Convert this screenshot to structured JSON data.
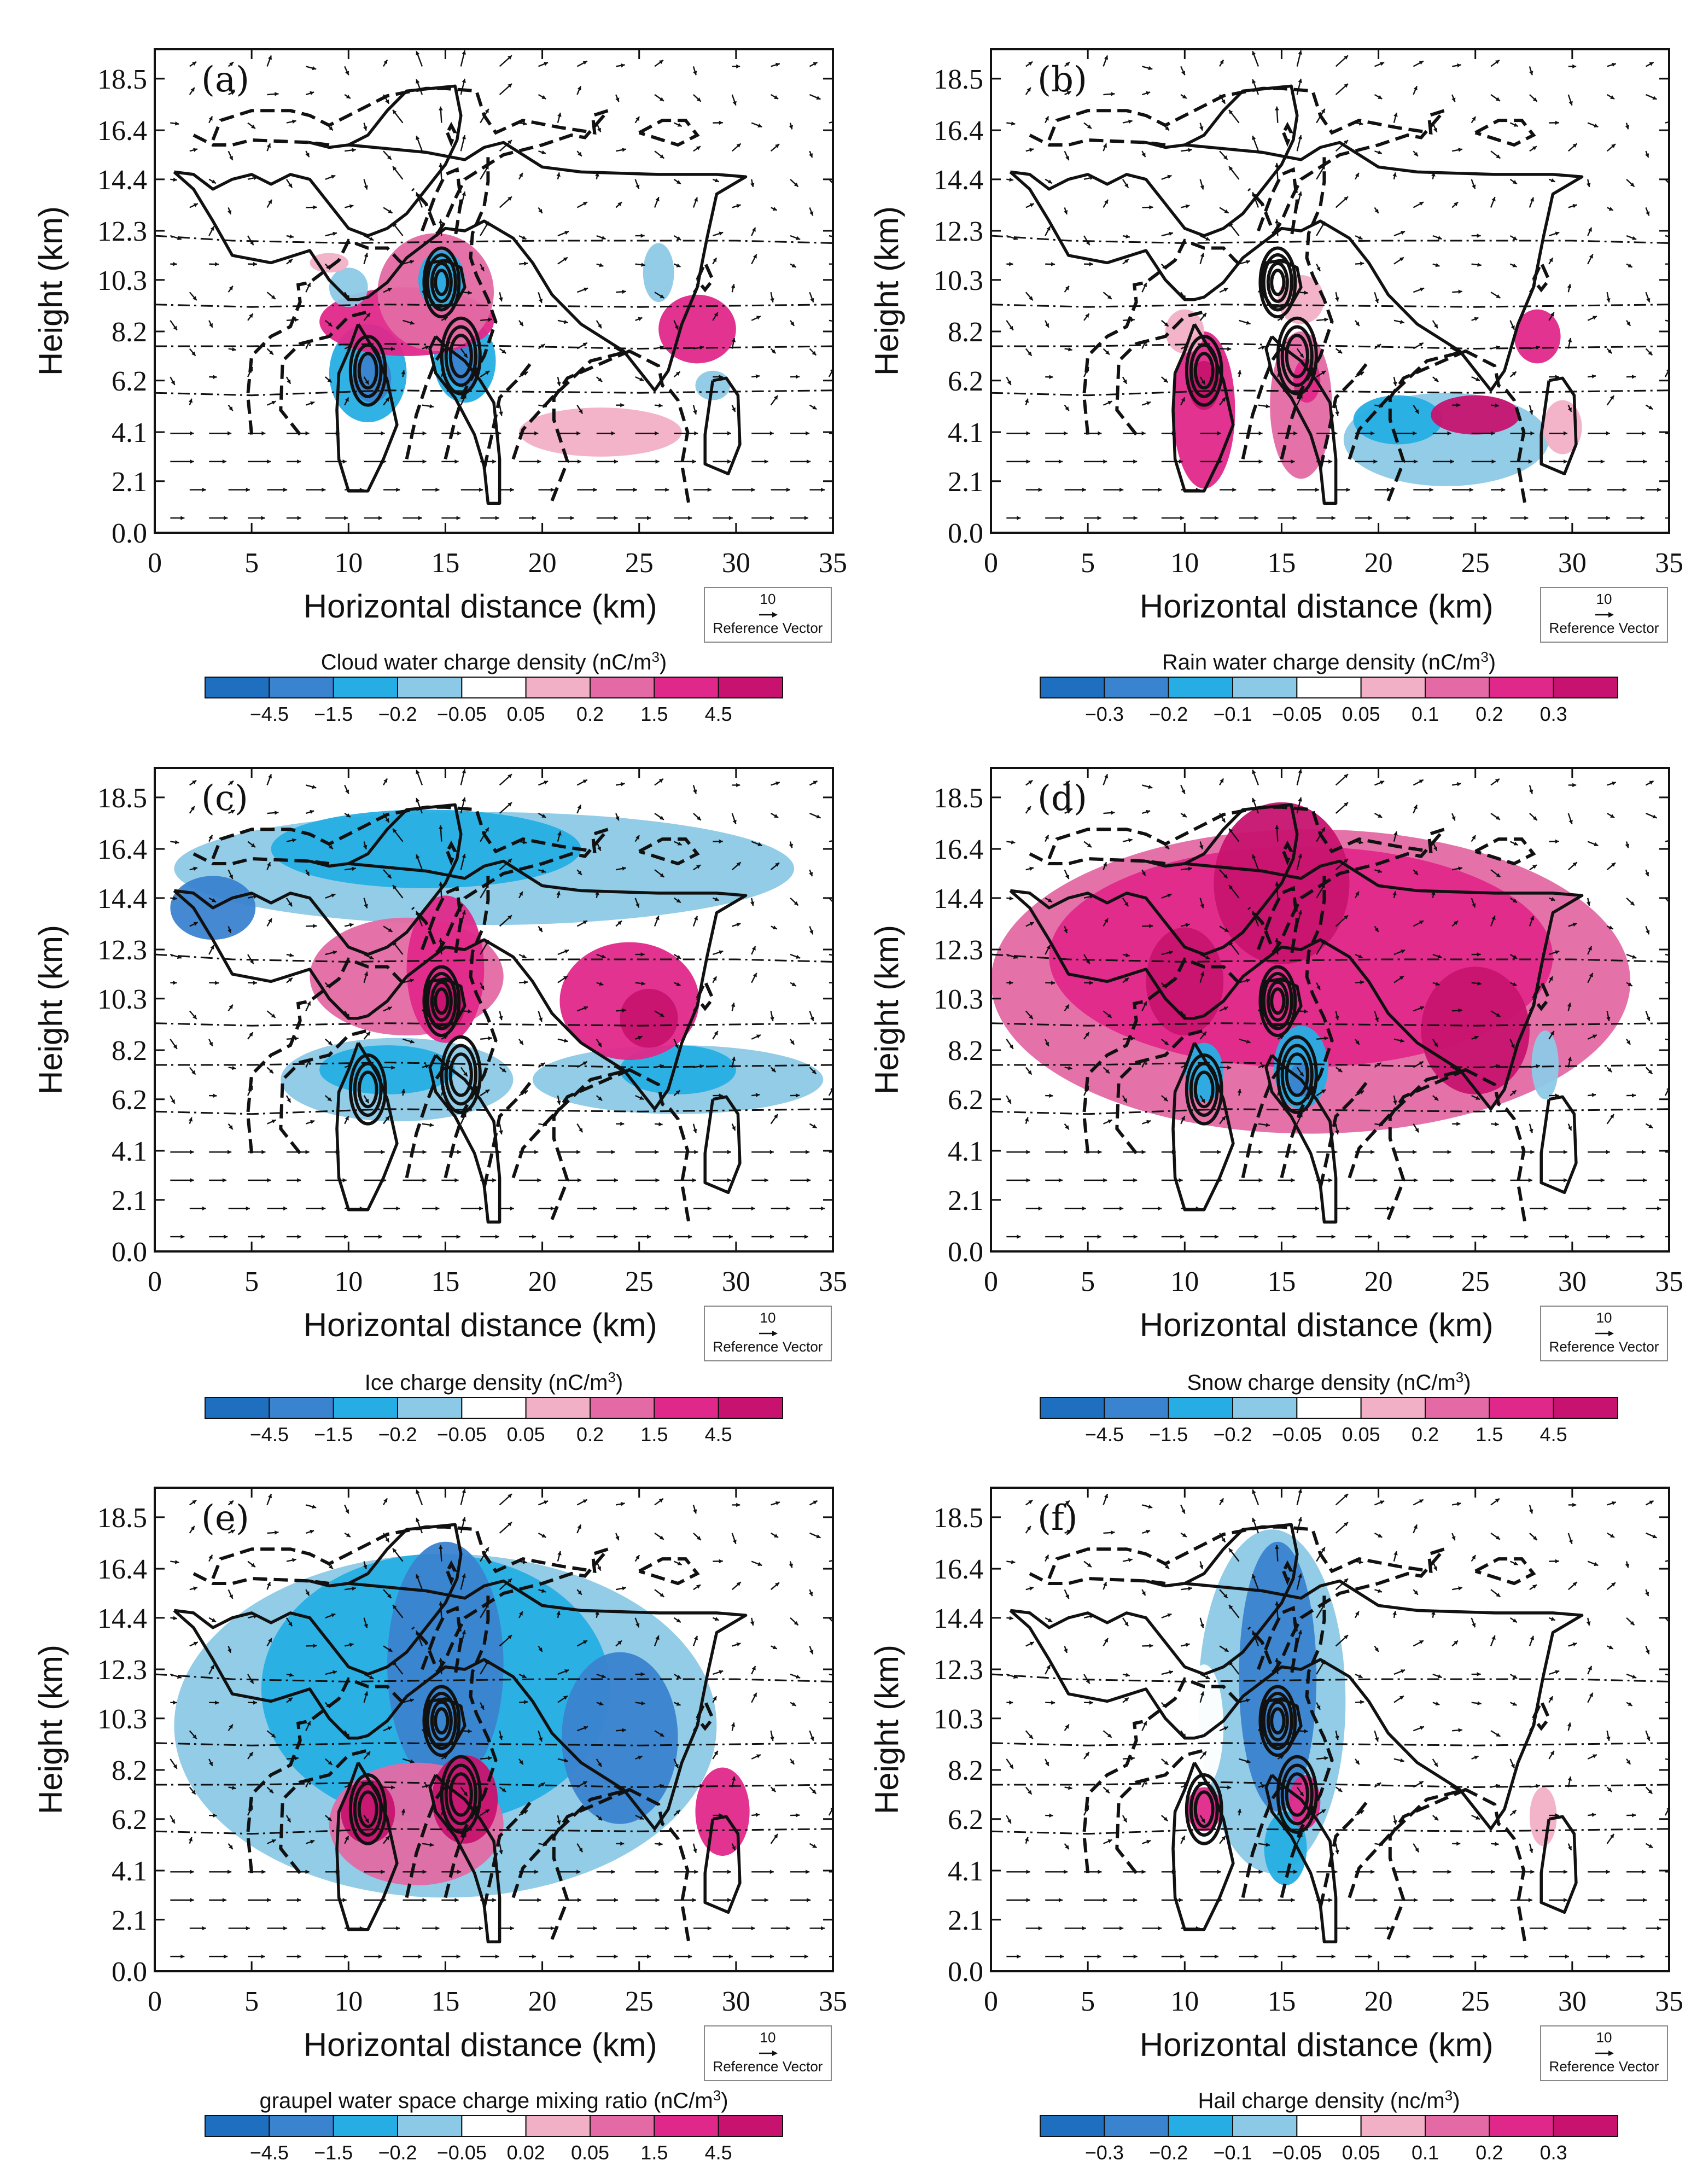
{
  "chart_data": [
    {
      "type": "contour",
      "panel_label": "(a)",
      "xlabel": "Horizontal distance (km)",
      "ylabel": "Height (km)",
      "xlim": [
        0,
        35
      ],
      "xticks": [
        "0",
        "5",
        "10",
        "15",
        "20",
        "25",
        "30",
        "35"
      ],
      "yticks": [
        "0.0",
        "2.1",
        "4.1",
        "6.2",
        "8.2",
        "10.3",
        "12.3",
        "14.4",
        "16.4",
        "18.5"
      ],
      "reference_vector": {
        "value": "10",
        "label": "Reference Vector"
      },
      "colorbar": {
        "title": "Cloud water charge density  (nC/m",
        "title_sup": "3",
        "title_end": ")",
        "levels": [
          "-4.5",
          "-1.5",
          "-0.2",
          "-0.05",
          "0.05",
          "0.2",
          "1.5",
          "4.5"
        ]
      },
      "blobs": [
        {
          "x": 11,
          "y": 6.5,
          "rx": 2.0,
          "ry": 2.0,
          "c": 2
        },
        {
          "x": 11.2,
          "y": 6.3,
          "rx": 1.0,
          "ry": 1.0,
          "c": 1
        },
        {
          "x": 16,
          "y": 7.0,
          "rx": 1.6,
          "ry": 1.7,
          "c": 2
        },
        {
          "x": 16,
          "y": 6.8,
          "rx": 0.8,
          "ry": 0.9,
          "c": 1
        },
        {
          "x": 13,
          "y": 8.6,
          "rx": 4.5,
          "ry": 1.4,
          "c": 7
        },
        {
          "x": 14.5,
          "y": 9.8,
          "rx": 3.0,
          "ry": 2.4,
          "c": 6
        },
        {
          "x": 14.8,
          "y": 10.3,
          "rx": 1.2,
          "ry": 1.2,
          "c": 2
        },
        {
          "x": 10,
          "y": 10.0,
          "rx": 1.0,
          "ry": 0.8,
          "c": 3
        },
        {
          "x": 9,
          "y": 11.0,
          "rx": 1.0,
          "ry": 0.4,
          "c": 5
        },
        {
          "x": 23,
          "y": 4.1,
          "rx": 4.2,
          "ry": 1.0,
          "c": 5
        },
        {
          "x": 26,
          "y": 10.6,
          "rx": 0.8,
          "ry": 1.2,
          "c": 3
        },
        {
          "x": 28,
          "y": 8.3,
          "rx": 2.0,
          "ry": 1.4,
          "c": 7
        },
        {
          "x": 28.8,
          "y": 6.0,
          "rx": 0.9,
          "ry": 0.6,
          "c": 3
        }
      ]
    },
    {
      "type": "contour",
      "panel_label": "(b)",
      "xlabel": "Horizontal distance (km)",
      "ylabel": "Height (km)",
      "xlim": [
        0,
        35
      ],
      "xticks": [
        "0",
        "5",
        "10",
        "15",
        "20",
        "25",
        "30",
        "35"
      ],
      "yticks": [
        "0.0",
        "2.1",
        "4.1",
        "6.2",
        "8.2",
        "10.3",
        "12.3",
        "14.4",
        "16.4",
        "18.5"
      ],
      "reference_vector": {
        "value": "10",
        "label": "Reference Vector"
      },
      "colorbar": {
        "title": "Rain water charge density  (nC/m",
        "title_sup": "3",
        "title_end": ")",
        "levels": [
          "-0.3",
          "-0.2",
          "-0.1",
          "-0.05",
          "0.05",
          "0.1",
          "0.2",
          "0.3"
        ]
      },
      "blobs": [
        {
          "x": 11,
          "y": 5.0,
          "rx": 1.6,
          "ry": 3.2,
          "c": 7
        },
        {
          "x": 11,
          "y": 6.0,
          "rx": 0.8,
          "ry": 1.0,
          "c": 8
        },
        {
          "x": 16,
          "y": 5.2,
          "rx": 1.6,
          "ry": 3.0,
          "c": 6
        },
        {
          "x": 16.3,
          "y": 6.2,
          "rx": 0.7,
          "ry": 0.9,
          "c": 7
        },
        {
          "x": 10,
          "y": 8.2,
          "rx": 1.0,
          "ry": 0.9,
          "c": 5
        },
        {
          "x": 16,
          "y": 9.5,
          "rx": 1.2,
          "ry": 1.0,
          "c": 5
        },
        {
          "x": 7,
          "y": 3.9,
          "rx": 1.5,
          "ry": 0.8,
          "c": 4
        },
        {
          "x": 23.5,
          "y": 3.8,
          "rx": 5.3,
          "ry": 1.9,
          "c": 3
        },
        {
          "x": 21,
          "y": 4.6,
          "rx": 2.3,
          "ry": 1.0,
          "c": 2
        },
        {
          "x": 25,
          "y": 4.8,
          "rx": 2.3,
          "ry": 0.8,
          "c": 8
        },
        {
          "x": 28.2,
          "y": 8.0,
          "rx": 1.2,
          "ry": 1.1,
          "c": 7
        },
        {
          "x": 29.5,
          "y": 4.3,
          "rx": 1.0,
          "ry": 1.1,
          "c": 5
        }
      ]
    },
    {
      "type": "contour",
      "panel_label": "(c)",
      "xlabel": "Horizontal distance (km)",
      "ylabel": "Height (km)",
      "xlim": [
        0,
        35
      ],
      "xticks": [
        "0",
        "5",
        "10",
        "15",
        "20",
        "25",
        "30",
        "35"
      ],
      "yticks": [
        "0.0",
        "2.1",
        "4.1",
        "6.2",
        "8.2",
        "10.3",
        "12.3",
        "14.4",
        "16.4",
        "18.5"
      ],
      "reference_vector": {
        "value": "10",
        "label": "Reference Vector"
      },
      "colorbar": {
        "title": "Ice charge density  (nC/m",
        "title_sup": "3",
        "title_end": ")",
        "levels": [
          "-4.5",
          "-1.5",
          "-0.2",
          "-0.05",
          "0.05",
          "0.2",
          "1.5",
          "4.5"
        ]
      },
      "blobs": [
        {
          "x": 17,
          "y": 15.6,
          "rx": 16,
          "ry": 2.3,
          "c": 3
        },
        {
          "x": 14,
          "y": 16.4,
          "rx": 8,
          "ry": 1.6,
          "c": 2
        },
        {
          "x": 3,
          "y": 14.0,
          "rx": 2.2,
          "ry": 1.3,
          "c": 1
        },
        {
          "x": 27,
          "y": 7.0,
          "rx": 7.5,
          "ry": 1.4,
          "c": 3
        },
        {
          "x": 27,
          "y": 7.4,
          "rx": 3.0,
          "ry": 1.0,
          "c": 2
        },
        {
          "x": 12.5,
          "y": 7.0,
          "rx": 6.0,
          "ry": 1.7,
          "c": 3
        },
        {
          "x": 12,
          "y": 7.4,
          "rx": 3.5,
          "ry": 1.0,
          "c": 2
        },
        {
          "x": 13,
          "y": 11.2,
          "rx": 5.0,
          "ry": 2.4,
          "c": 6
        },
        {
          "x": 15,
          "y": 11.5,
          "rx": 2.0,
          "ry": 3.0,
          "c": 7
        },
        {
          "x": 15,
          "y": 10.0,
          "rx": 1.0,
          "ry": 1.0,
          "c": 8
        },
        {
          "x": 24.5,
          "y": 10.2,
          "rx": 3.6,
          "ry": 2.4,
          "c": 7
        },
        {
          "x": 25.5,
          "y": 9.5,
          "rx": 1.5,
          "ry": 1.2,
          "c": 8
        }
      ]
    },
    {
      "type": "contour",
      "panel_label": "(d)",
      "xlabel": "Horizontal distance (km)",
      "ylabel": "Height (km)",
      "xlim": [
        0,
        35
      ],
      "xticks": [
        "0",
        "5",
        "10",
        "15",
        "20",
        "25",
        "30",
        "35"
      ],
      "yticks": [
        "0.0",
        "2.1",
        "4.1",
        "6.2",
        "8.2",
        "10.3",
        "12.3",
        "14.4",
        "16.4",
        "18.5"
      ],
      "reference_vector": {
        "value": "10",
        "label": "Reference Vector"
      },
      "colorbar": {
        "title": "Snow charge density  (nC/m",
        "title_sup": "3",
        "title_end": ")",
        "levels": [
          "-4.5",
          "-1.5",
          "-0.2",
          "-0.05",
          "0.05",
          "0.2",
          "1.5",
          "4.5"
        ]
      },
      "blobs": [
        {
          "x": 16.5,
          "y": 11.0,
          "rx": 16.5,
          "ry": 6.2,
          "c": 6
        },
        {
          "x": 16,
          "y": 12.0,
          "rx": 13,
          "ry": 4.5,
          "c": 7
        },
        {
          "x": 15,
          "y": 15.0,
          "rx": 3.5,
          "ry": 3.3,
          "c": 8
        },
        {
          "x": 10,
          "y": 11.0,
          "rx": 2.0,
          "ry": 2.2,
          "c": 8
        },
        {
          "x": 25,
          "y": 9.0,
          "rx": 2.8,
          "ry": 2.6,
          "c": 8
        },
        {
          "x": 11,
          "y": 7.3,
          "rx": 1.0,
          "ry": 1.2,
          "c": 2
        },
        {
          "x": 16,
          "y": 7.5,
          "rx": 1.4,
          "ry": 1.7,
          "c": 2
        },
        {
          "x": 16,
          "y": 7.0,
          "rx": 0.6,
          "ry": 0.7,
          "c": 1
        },
        {
          "x": 28.6,
          "y": 7.6,
          "rx": 0.7,
          "ry": 1.4,
          "c": 3
        }
      ]
    },
    {
      "type": "contour",
      "panel_label": "(e)",
      "xlabel": "Horizontal distance (km)",
      "ylabel": "Height (km)",
      "xlim": [
        0,
        35
      ],
      "xticks": [
        "0",
        "5",
        "10",
        "15",
        "20",
        "25",
        "30",
        "35"
      ],
      "yticks": [
        "0.0",
        "2.1",
        "4.1",
        "6.2",
        "8.2",
        "10.3",
        "12.3",
        "14.4",
        "16.4",
        "18.5"
      ],
      "reference_vector": {
        "value": "10",
        "label": "Reference Vector"
      },
      "colorbar": {
        "title": "graupel water space charge mixing ratio  (nC/m",
        "title_sup": "3",
        "title_end": ")",
        "levels": [
          "-4.5",
          "-1.5",
          "-0.2",
          "-0.05",
          "0.02",
          "0.05",
          "1.5",
          "4.5"
        ]
      },
      "blobs": [
        {
          "x": 15,
          "y": 10.0,
          "rx": 14,
          "ry": 7.0,
          "c": 3
        },
        {
          "x": 14.5,
          "y": 11.5,
          "rx": 9,
          "ry": 5.5,
          "c": 2
        },
        {
          "x": 15,
          "y": 12.5,
          "rx": 3.0,
          "ry": 5.0,
          "c": 1
        },
        {
          "x": 24,
          "y": 9.5,
          "rx": 3.0,
          "ry": 3.5,
          "c": 1
        },
        {
          "x": 13.5,
          "y": 6.0,
          "rx": 4.5,
          "ry": 2.5,
          "c": 6
        },
        {
          "x": 11,
          "y": 6.5,
          "rx": 1.4,
          "ry": 1.3,
          "c": 8
        },
        {
          "x": 16,
          "y": 7.0,
          "rx": 1.7,
          "ry": 1.8,
          "c": 8
        },
        {
          "x": 29.3,
          "y": 6.5,
          "rx": 1.4,
          "ry": 1.8,
          "c": 7
        }
      ]
    },
    {
      "type": "contour",
      "panel_label": "(f)",
      "xlabel": "Horizontal distance (km)",
      "ylabel": "Height (km)",
      "xlim": [
        0,
        35
      ],
      "xticks": [
        "0",
        "5",
        "10",
        "15",
        "20",
        "25",
        "30",
        "35"
      ],
      "yticks": [
        "0.0",
        "2.1",
        "4.1",
        "6.2",
        "8.2",
        "10.3",
        "12.3",
        "14.4",
        "16.4",
        "18.5"
      ],
      "reference_vector": {
        "value": "10",
        "label": "Reference Vector"
      },
      "colorbar": {
        "title": "Hail charge density  (nc/m",
        "title_sup": "3",
        "title_end": ")",
        "levels": [
          "-0.3",
          "-0.2",
          "-0.1",
          "-0.05",
          "0.05",
          "0.1",
          "0.2",
          "0.3"
        ]
      },
      "blobs": [
        {
          "x": 14.5,
          "y": 11.0,
          "rx": 3.8,
          "ry": 7.0,
          "c": 3
        },
        {
          "x": 14.8,
          "y": 12.0,
          "rx": 2.0,
          "ry": 5.5,
          "c": 1
        },
        {
          "x": 11,
          "y": 10.0,
          "rx": 1.0,
          "ry": 2.5,
          "c": 4
        },
        {
          "x": 15.2,
          "y": 5.0,
          "rx": 1.1,
          "ry": 1.5,
          "c": 2
        },
        {
          "x": 11,
          "y": 6.6,
          "rx": 0.9,
          "ry": 0.9,
          "c": 7
        },
        {
          "x": 16.2,
          "y": 6.9,
          "rx": 0.8,
          "ry": 1.1,
          "c": 7
        },
        {
          "x": 28.5,
          "y": 6.3,
          "rx": 0.7,
          "ry": 1.2,
          "c": 5
        }
      ]
    }
  ],
  "colors": {
    "levels": [
      "#1f6fc1",
      "#3a83cf",
      "#26aee4",
      "#8cc9e6",
      "#ffffff",
      "#f2b0c6",
      "#e36aa4",
      "#e0288a",
      "#c7136f"
    ],
    "fills": [
      "#1f6fc1",
      "#3a83cf",
      "#26aee4",
      "#8cc9e6",
      "#ffffff",
      "#f2b0c6",
      "#e36aa4",
      "#e0288a",
      "#c7136f"
    ]
  }
}
